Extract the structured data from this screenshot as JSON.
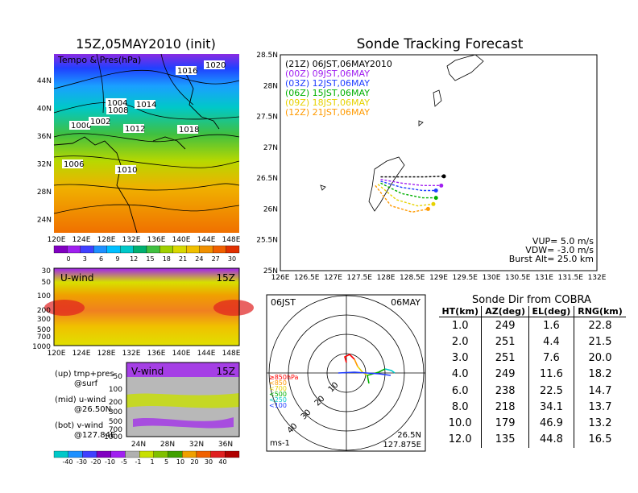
{
  "map_panel": {
    "title": "15Z,05MAY2010 (init)",
    "field_label": "Tempo & Pres(hPa)",
    "lat_ticks": [
      "44N",
      "40N",
      "36N",
      "32N",
      "28N",
      "24N"
    ],
    "lon_ticks": [
      "120E",
      "124E",
      "128E",
      "132E",
      "136E",
      "140E",
      "144E",
      "148E"
    ],
    "pressure_labels": [
      "1004",
      "1006",
      "1008",
      "1010",
      "1012",
      "1014",
      "1016",
      "1018",
      "1020",
      "1000",
      "1002"
    ],
    "colorbar_ticks": [
      "0",
      "3",
      "6",
      "9",
      "12",
      "15",
      "18",
      "21",
      "24",
      "27",
      "30"
    ]
  },
  "u_panel": {
    "label": "U-wind",
    "time": "15Z",
    "p_ticks": [
      "30",
      "50",
      "100",
      "200",
      "300",
      "500",
      "700",
      "1000"
    ],
    "lon_ticks": [
      "120E",
      "124E",
      "128E",
      "132E",
      "136E",
      "140E",
      "144E",
      "148E"
    ]
  },
  "v_panel": {
    "label": "V-wind",
    "time": "15Z",
    "p_ticks": [
      "50",
      "100",
      "200",
      "300",
      "500",
      "700",
      "1000"
    ],
    "lat_ticks": [
      "24N",
      "28N",
      "32N",
      "36N"
    ],
    "colorbar_ticks": [
      "-40",
      "-30",
      "-20",
      "-10",
      "-5",
      "-1",
      "1",
      "5",
      "10",
      "20",
      "30",
      "40"
    ]
  },
  "notes": [
    {
      "line1": "(up) tmp+pres",
      "line2": "@surf"
    },
    {
      "line1": "(mid) u-wind",
      "line2": "@26.50N"
    },
    {
      "line1": "(bot) v-wind",
      "line2": "@127.84E"
    }
  ],
  "track_panel": {
    "title": "Sonde Tracking Forecast",
    "legend": [
      {
        "label": "(21Z) 06JST,06MAY2010",
        "color": "#000000"
      },
      {
        "label": "(00Z) 09JST,06MAY",
        "color": "#a020f0"
      },
      {
        "label": "(03Z) 12JST,06MAY",
        "color": "#1e3cff"
      },
      {
        "label": "(06Z) 15JST,06MAY",
        "color": "#00b000"
      },
      {
        "label": "(09Z) 18JST,06MAY",
        "color": "#e6d200"
      },
      {
        "label": "(12Z) 21JST,06MAY",
        "color": "#ff9a00"
      }
    ],
    "params": [
      "VUP= 5.0 m/s",
      "VDW= -3.0 m/s",
      "Burst Alt= 25.0 km"
    ],
    "lat_ticks": [
      "28.5N",
      "28N",
      "27.5N",
      "27N",
      "26.5N",
      "26N",
      "25.5N",
      "25N"
    ],
    "lon_ticks": [
      "126E",
      "126.5E",
      "127E",
      "127.5E",
      "128E",
      "128.5E",
      "129E",
      "129.5E",
      "130E",
      "130.5E",
      "131E",
      "131.5E",
      "132E"
    ]
  },
  "chart_data": [
    {
      "type": "line",
      "title": "Sonde Tracking Forecast",
      "xlabel": "",
      "ylabel": "",
      "xlim": [
        126,
        132
      ],
      "ylim": [
        25,
        28.5
      ],
      "series": [
        {
          "name": "(21Z) 06JST,06MAY2010",
          "color": "#000000",
          "x": [
            127.9,
            128.3,
            128.7,
            129.1
          ],
          "y": [
            26.52,
            26.52,
            26.52,
            26.53
          ]
        },
        {
          "name": "(00Z) 09JST,06MAY",
          "color": "#a020f0",
          "x": [
            127.9,
            128.3,
            128.7,
            129.05
          ],
          "y": [
            26.48,
            26.42,
            26.38,
            26.38
          ]
        },
        {
          "name": "(03Z) 12JST,06MAY",
          "color": "#1e3cff",
          "x": [
            127.9,
            128.3,
            128.7,
            128.95
          ],
          "y": [
            26.45,
            26.35,
            26.3,
            26.3
          ]
        },
        {
          "name": "(06Z) 15JST,06MAY",
          "color": "#00b000",
          "x": [
            127.9,
            128.3,
            128.7,
            128.95
          ],
          "y": [
            26.42,
            26.25,
            26.18,
            26.18
          ]
        },
        {
          "name": "(09Z) 18JST,06MAY",
          "color": "#e6d200",
          "x": [
            127.85,
            128.2,
            128.6,
            128.9
          ],
          "y": [
            26.4,
            26.15,
            26.05,
            26.08
          ]
        },
        {
          "name": "(12Z) 21JST,06MAY",
          "color": "#ff9a00",
          "x": [
            127.8,
            128.1,
            128.5,
            128.8
          ],
          "y": [
            26.38,
            26.05,
            25.95,
            26.0
          ]
        }
      ]
    },
    {
      "type": "table",
      "title": "Sonde Dir from COBRA",
      "columns": [
        "HT(km)",
        "AZ(deg)",
        "EL(deg)",
        "RNG(km)"
      ],
      "rows": [
        [
          "1.0",
          "249",
          "1.6",
          "22.8"
        ],
        [
          "2.0",
          "251",
          "4.4",
          "21.5"
        ],
        [
          "3.0",
          "251",
          "7.6",
          "20.0"
        ],
        [
          "4.0",
          "249",
          "11.6",
          "18.2"
        ],
        [
          "6.0",
          "238",
          "22.5",
          "14.7"
        ],
        [
          "8.0",
          "218",
          "34.1",
          "13.7"
        ],
        [
          "10.0",
          "179",
          "46.9",
          "13.2"
        ],
        [
          "12.0",
          "135",
          "44.8",
          "16.5"
        ]
      ]
    }
  ],
  "hodo_panel": {
    "time_label": "06JST",
    "date_label": "06MAY",
    "ring_labels": [
      "10",
      "20",
      "30",
      "40"
    ],
    "levels": [
      {
        "label": "≥850hPa",
        "color": "#ff0000"
      },
      {
        "label": "<850",
        "color": "#ff9a00"
      },
      {
        "label": "<700",
        "color": "#e6d200"
      },
      {
        "label": "<500",
        "color": "#00b000"
      },
      {
        "label": "<250",
        "color": "#00c8c8"
      },
      {
        "label": "<100",
        "color": "#1e3cff"
      }
    ],
    "unit": "ms-1",
    "location_lat": "26.5N",
    "location_lon": "127.875E"
  }
}
